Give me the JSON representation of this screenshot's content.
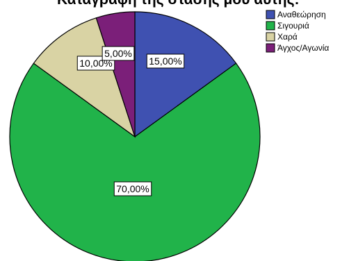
{
  "chart_data": {
    "type": "pie",
    "title": "Καταγραφή της στάσης μου αυτής:",
    "legend_position": "top-right",
    "categories": [
      "Αναθεώρηση",
      "Σιγουριά",
      "Χαρά",
      "Άγχος/Αγωνία"
    ],
    "values": [
      15,
      70,
      10,
      5
    ],
    "data_labels": [
      "15,00%",
      "70,00%",
      "10,00%",
      "5,00%"
    ],
    "colors": [
      "#3f51b1",
      "#21b34a",
      "#d9d3a4",
      "#7b1f79"
    ]
  }
}
